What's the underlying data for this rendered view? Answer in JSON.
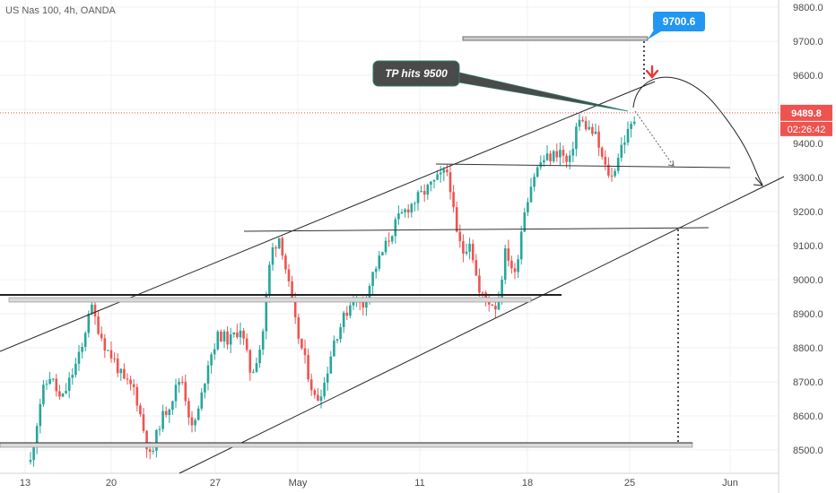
{
  "chart_data": {
    "type": "candlestick",
    "title": "US Nas 100, 4h, OANDA",
    "ylim": [
      8450,
      9840
    ],
    "y_ticks": [
      8500,
      8600,
      8700,
      8800,
      8900,
      9000,
      9100,
      9200,
      9300,
      9400,
      9500,
      9600,
      9700,
      9800
    ],
    "y_tick_labels": [
      "8500.0",
      "8600.0",
      "8700.0",
      "8800.0",
      "8900.0",
      "9000.0",
      "9100.0",
      "9200.0",
      "9300.0",
      "9400.0",
      "9500.0",
      "9600.0",
      "9700.0",
      "9800.0"
    ],
    "x_labels": [
      "13",
      "20",
      "27",
      "May",
      "11",
      "18",
      "25",
      "Jun"
    ],
    "last_price": "9489.8",
    "countdown": "02:26:42",
    "last_price_value": 9489.8,
    "colors": {
      "up": "#26a69a",
      "down": "#ef5350",
      "price_tag": "#ef5350",
      "target_tag": "#2196f3",
      "callout": "#4a4a4a"
    },
    "annotations": {
      "target_label": "9700.6",
      "callout_text": "TP hits 9500"
    }
  }
}
